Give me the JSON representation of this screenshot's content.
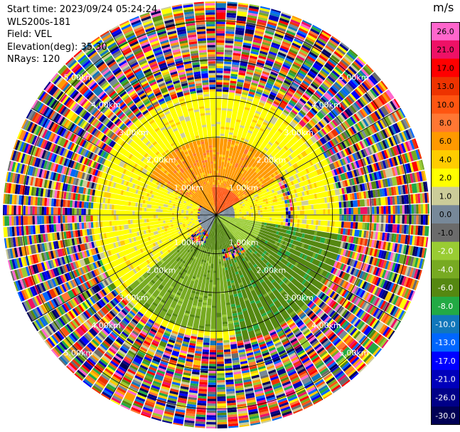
{
  "info": {
    "start_time": "Start time: 2023/09/24 05:24:24",
    "site": "WLS200s-181",
    "field": "Field: VEL",
    "elevation": "Elevation(deg): 35.30",
    "nrays": "NRays: 120"
  },
  "chart_data": {
    "type": "heatmap",
    "projection": "polar-ppi",
    "title": "",
    "range_ring_labels": [
      "1.00km",
      "2.00km",
      "3.00km",
      "4.00km",
      "5.00km"
    ],
    "range_rings_km": [
      1,
      2,
      3,
      4,
      5
    ],
    "max_range_km": 5.5,
    "spoke_interval_deg": 30,
    "colorbar": {
      "unit": "m/s",
      "tick_labels": [
        "26.0",
        "21.0",
        "17.0",
        "13.0",
        "10.0",
        "8.0",
        "6.0",
        "4.0",
        "2.0",
        "1.0",
        "0.0",
        "-1.0",
        "-2.0",
        "-4.0",
        "-6.0",
        "-8.0",
        "-10.0",
        "-13.0",
        "-17.0",
        "-21.0",
        "-26.0",
        "-30.0"
      ],
      "colors": [
        "#ff66cc",
        "#ee1166",
        "#ff0000",
        "#ee3300",
        "#ff5511",
        "#ff7733",
        "#ff9900",
        "#ffcc00",
        "#ffff00",
        "#cccc99",
        "#778899",
        "#6b6b6b",
        "#99cc33",
        "#77aa22",
        "#558811",
        "#22aa44",
        "#1177bb",
        "#0066ff",
        "#0000ff",
        "#0000bb",
        "#000088",
        "#000055"
      ]
    },
    "near_field_pattern": [
      {
        "az_from": 350,
        "az_to": 60,
        "max_range_km": 0.7,
        "value": 10.0
      },
      {
        "az_from": 300,
        "az_to": 350,
        "max_range_km": 0.8,
        "value": 6.0
      },
      {
        "az_from": 60,
        "az_to": 100,
        "max_range_km": 0.5,
        "value": 0.0
      },
      {
        "az_from": 100,
        "az_to": 140,
        "max_range_km": 1.2,
        "value": -2.0
      },
      {
        "az_from": 140,
        "az_to": 200,
        "max_range_km": 0.9,
        "value": -6.0
      },
      {
        "az_from": 200,
        "az_to": 240,
        "max_range_km": 0.5,
        "value": 0.0
      },
      {
        "az_from": 240,
        "az_to": 300,
        "max_range_km": 0.4,
        "value": 0.0
      }
    ],
    "zones": [
      {
        "az_from": 300,
        "az_to": 60,
        "r_from_km": 0.7,
        "r_to_km": 2.0,
        "value": 6.0
      },
      {
        "az_from": 60,
        "az_to": 100,
        "r_from_km": 0.5,
        "r_to_km": 1.8,
        "value": 2.0
      },
      {
        "az_from": 100,
        "az_to": 170,
        "r_from_km": 1.2,
        "r_to_km": 3.3,
        "value": -6.0
      },
      {
        "az_from": 170,
        "az_to": 230,
        "r_from_km": 0.9,
        "r_to_km": 3.0,
        "value": -4.0
      },
      {
        "az_from": 230,
        "az_to": 300,
        "r_from_km": 0.5,
        "r_to_km": 2.8,
        "value": 2.0
      },
      {
        "az_from": 0,
        "az_to": 360,
        "r_from_km": 2.0,
        "r_to_km": 3.2,
        "value": 2.0
      }
    ],
    "noise_range_km": [
      3.3,
      5.5
    ]
  }
}
